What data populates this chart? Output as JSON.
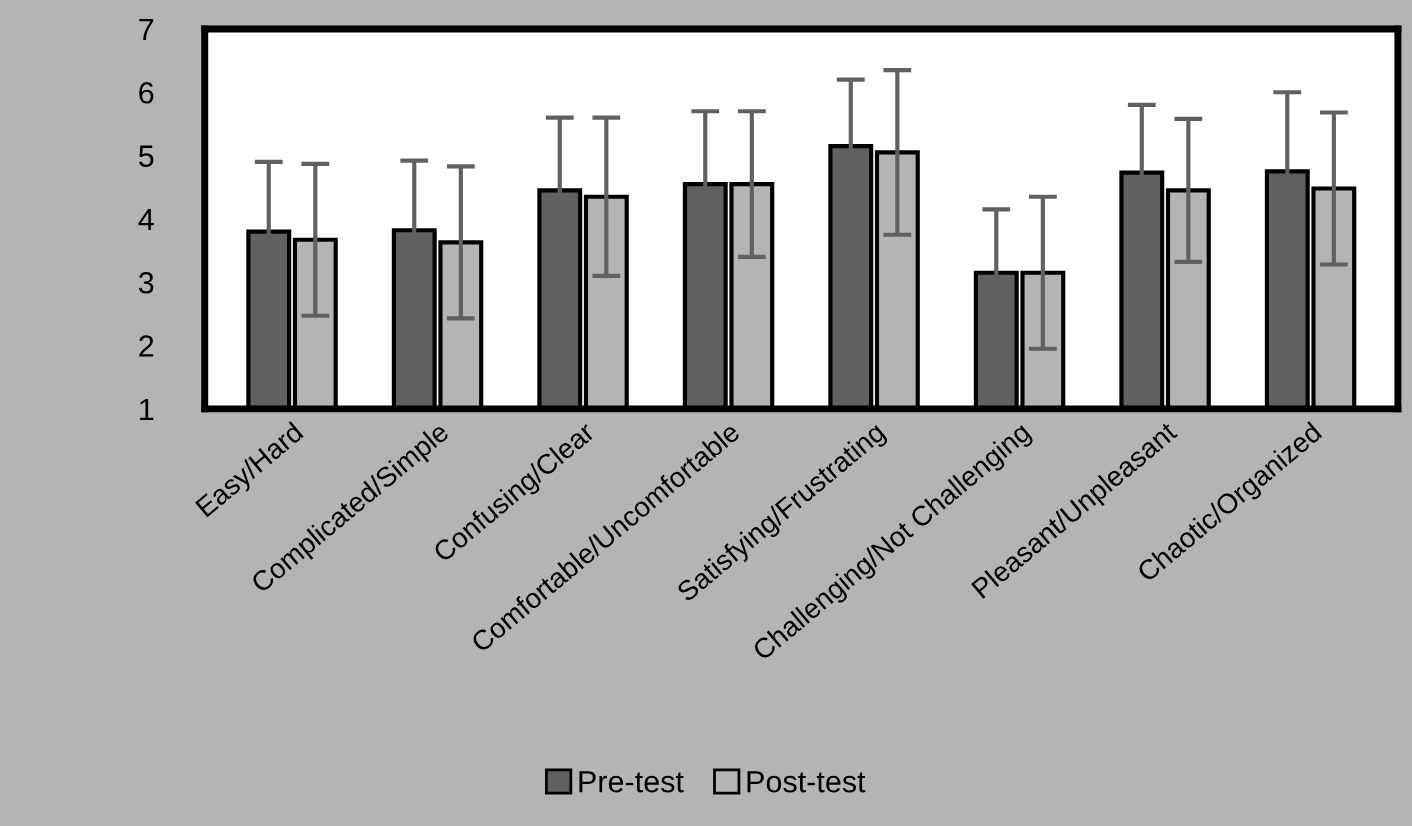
{
  "chart_data": {
    "type": "bar",
    "categories": [
      "Easy/Hard",
      "Complicated/Simple",
      "Confusing/Clear",
      "Comfortable/Uncomfortable",
      "Satisfying/Frustrating",
      "Challenging/Not Challenging",
      "Pleasant/Unpleasant",
      "Chaotic/Organized"
    ],
    "series": [
      {
        "name": "Pre-test",
        "color": "#606060",
        "values": [
          3.8,
          3.82,
          4.45,
          4.55,
          5.15,
          3.15,
          4.73,
          4.75
        ],
        "errors": [
          1.1,
          1.1,
          1.15,
          1.15,
          1.05,
          1.0,
          1.07,
          1.25
        ]
      },
      {
        "name": "Post-test",
        "color": "#b4b4b4",
        "values": [
          3.67,
          3.63,
          4.35,
          4.55,
          5.05,
          3.15,
          4.45,
          4.48
        ],
        "errors": [
          1.2,
          1.2,
          1.25,
          1.15,
          1.3,
          1.2,
          1.13,
          1.2
        ]
      }
    ],
    "ylim": [
      1,
      7
    ],
    "yticks": [
      1,
      2,
      3,
      4,
      5,
      6,
      7
    ],
    "grid": false,
    "legend": "bottom"
  }
}
